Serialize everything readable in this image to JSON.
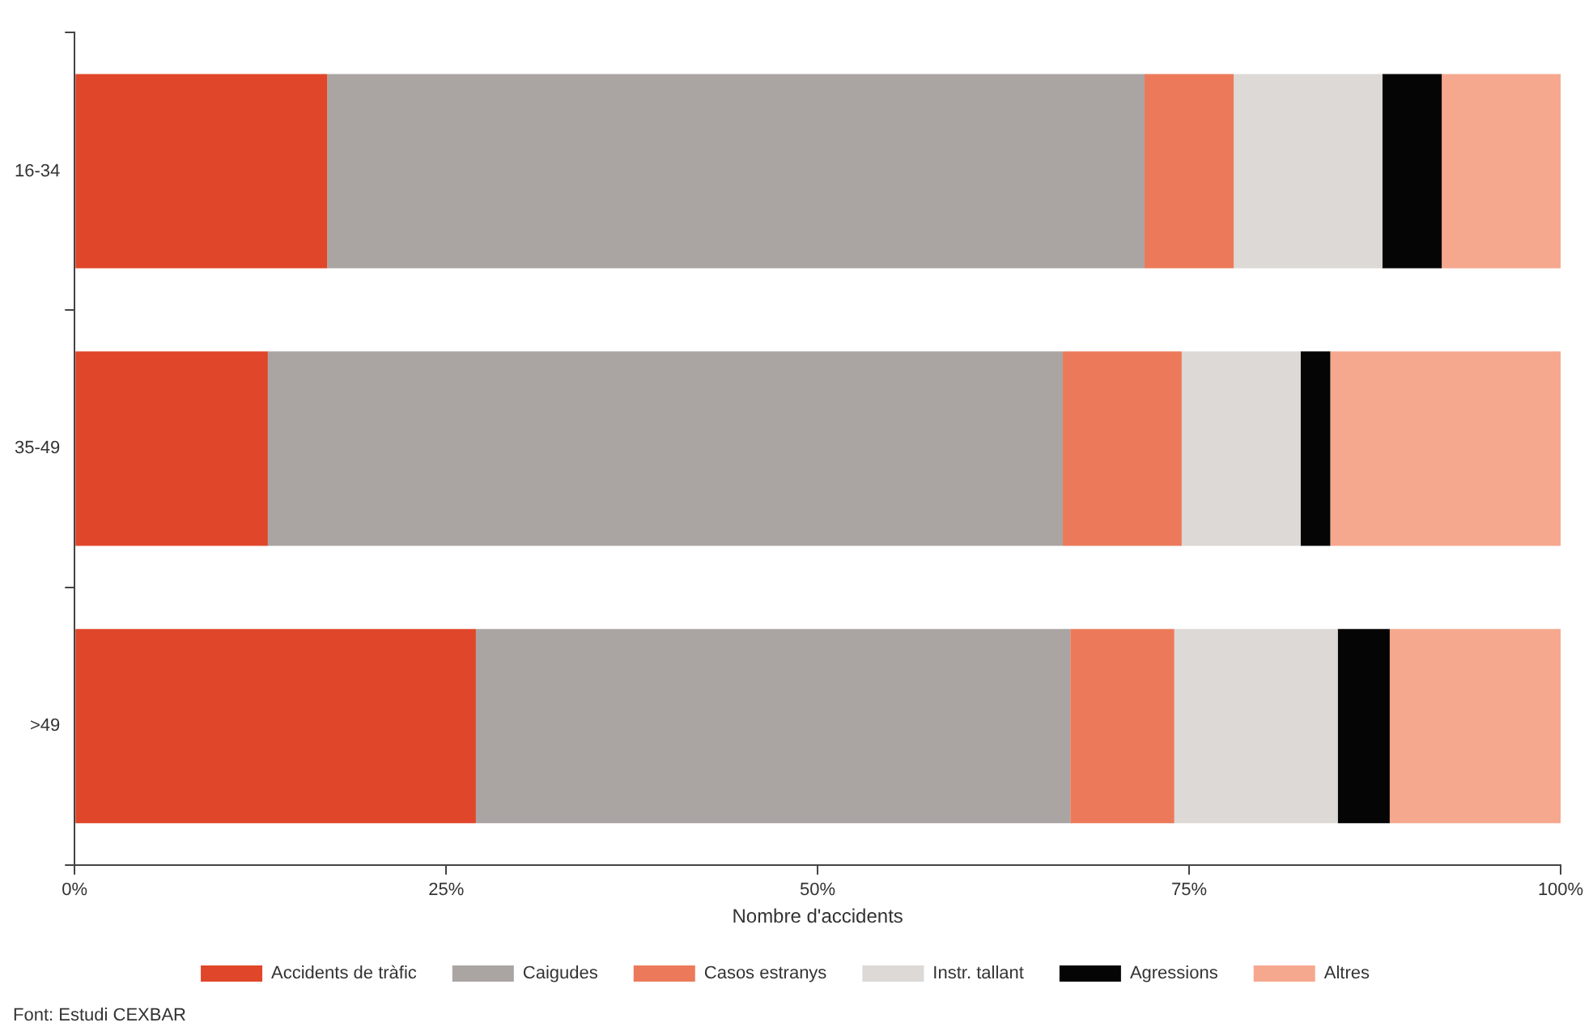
{
  "chart_data": {
    "type": "bar",
    "orientation": "horizontal",
    "stacked": true,
    "xlabel": "Nombre d'accidents",
    "categories": [
      "16-34",
      "35-49",
      ">49"
    ],
    "series": [
      {
        "name": "Accidents de tràfic",
        "color": "#e0462a",
        "values": [
          17,
          13,
          27
        ]
      },
      {
        "name": "Caigudes",
        "color": "#aaa5a3",
        "values": [
          55,
          53.5,
          40
        ]
      },
      {
        "name": "Casos estranys",
        "color": "#ec7a5a",
        "values": [
          6,
          8,
          7
        ]
      },
      {
        "name": "Instr. tallant",
        "color": "#dcd9d6",
        "values": [
          10,
          8,
          11
        ]
      },
      {
        "name": "Agressions",
        "color": "#050505",
        "values": [
          4,
          2,
          3.5
        ]
      },
      {
        "name": "Altres",
        "color": "#f5a88e",
        "values": [
          8,
          15.5,
          11.5
        ]
      }
    ],
    "xlim": [
      0,
      100
    ],
    "xticks": [
      {
        "value": 0,
        "label": "0%"
      },
      {
        "value": 25,
        "label": "25%"
      },
      {
        "value": 50,
        "label": "50%"
      },
      {
        "value": 75,
        "label": "75%"
      },
      {
        "value": 100,
        "label": "100%"
      }
    ],
    "legend": "bottom",
    "annotations": [
      "Font: Estudi CEXBAR"
    ]
  }
}
